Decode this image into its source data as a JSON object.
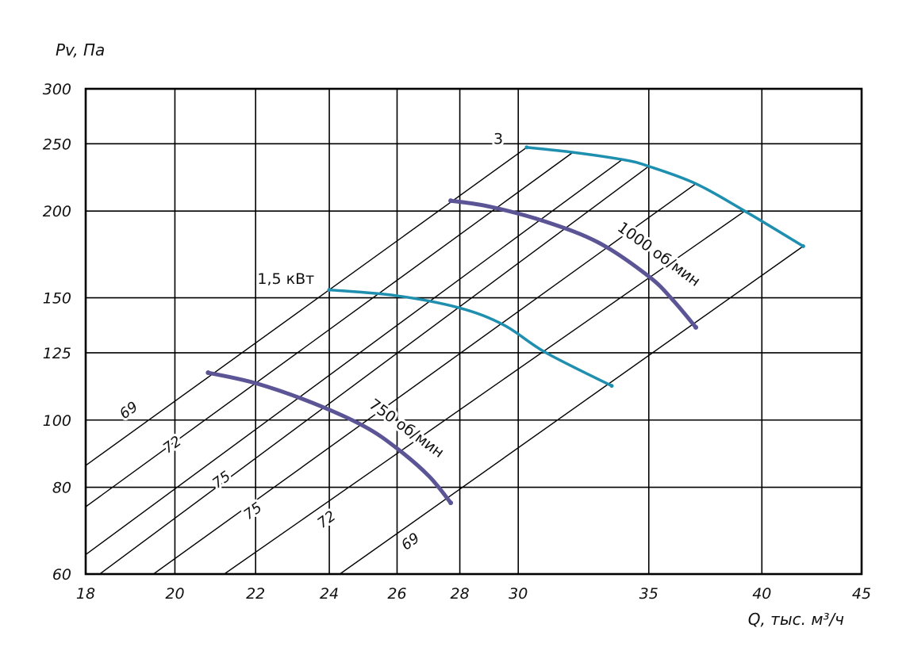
{
  "chart_data": {
    "type": "line",
    "xlabel": "Q, тыс. м³/ч",
    "ylabel": "Pv, Па",
    "x_scale": "log",
    "y_scale": "log",
    "xlim": [
      18,
      45
    ],
    "ylim": [
      60,
      300
    ],
    "x_ticks": [
      "18",
      "20",
      "22",
      "24",
      "26",
      "28",
      "30",
      "35",
      "40",
      "45"
    ],
    "y_ticks": [
      "60",
      "80",
      "100",
      "125",
      "150",
      "200",
      "250",
      "300"
    ],
    "grid": true,
    "series": [
      {
        "name": "750 об/мин",
        "color": "#5b5596",
        "x": [
          20.8,
          22.0,
          23.5,
          25.0,
          26.0,
          27.0,
          27.7
        ],
        "y": [
          117,
          113,
          106,
          98,
          91,
          83,
          76
        ]
      },
      {
        "name": "1000 об/мин",
        "color": "#5b5596",
        "x": [
          27.7,
          29.0,
          31.0,
          33.0,
          35.0,
          36.0,
          37.0
        ],
        "y": [
          207,
          203,
          193,
          180,
          161,
          149,
          136
        ]
      },
      {
        "name": "1,5 кВт",
        "color": "#1f8fb0",
        "x": [
          24.0,
          26.0,
          28.0,
          29.5,
          31.0,
          33.5
        ],
        "y": [
          154,
          151,
          145,
          137,
          125,
          112
        ]
      },
      {
        "name": "3",
        "color": "#1f8fb0",
        "x": [
          30.3,
          32.0,
          34.0,
          35.0,
          37.0,
          39.2,
          42.0
        ],
        "y": [
          247,
          243,
          237,
          232,
          219,
          200,
          178
        ]
      }
    ],
    "efficiency_lines": [
      {
        "label": "69",
        "x": [
          18,
          30.3
        ],
        "y": [
          86,
          247
        ]
      },
      {
        "label": "72",
        "x": [
          18,
          32.0
        ],
        "y": [
          75,
          243
        ]
      },
      {
        "label": "75",
        "x": [
          18,
          33.9
        ],
        "y": [
          64,
          237
        ]
      },
      {
        "label": "",
        "x": [
          18.3,
          35.0
        ],
        "y": [
          60,
          232
        ]
      },
      {
        "label": "75",
        "x": [
          19.5,
          37.0
        ],
        "y": [
          60,
          219
        ]
      },
      {
        "label": "72",
        "x": [
          21.2,
          39.2
        ],
        "y": [
          60,
          200
        ]
      },
      {
        "label": "69",
        "x": [
          24.3,
          42.0
        ],
        "y": [
          60,
          178
        ]
      }
    ],
    "efficiency_label_positions": [
      {
        "text": "69",
        "x": 19.0,
        "y": 102,
        "ref": "efficiency_lines.0"
      },
      {
        "text": "72",
        "x": 20.0,
        "y": 91,
        "ref": "efficiency_lines.1"
      },
      {
        "text": "75",
        "x": 21.2,
        "y": 81,
        "ref": "efficiency_lines.2"
      },
      {
        "text": "75",
        "x": 22.0,
        "y": 73,
        "ref": "efficiency_lines.4"
      },
      {
        "text": "72",
        "x": 24.0,
        "y": 71,
        "ref": "efficiency_lines.5"
      },
      {
        "text": "69",
        "x": 26.5,
        "y": 66,
        "ref": "efficiency_lines.6"
      }
    ],
    "annotations": [
      {
        "text": "1,5 кВт",
        "x": 22.8,
        "y": 157
      },
      {
        "text": "3",
        "x": 29.3,
        "y": 250
      },
      {
        "text": "750 об/мин",
        "x": 26.2,
        "y": 96,
        "angle": 36
      },
      {
        "text": "1000 об/мин",
        "x": 35.3,
        "y": 171,
        "angle": 36
      }
    ],
    "marker": {
      "x": [
        26,
        26
      ],
      "y": [
        100,
        104
      ]
    }
  }
}
